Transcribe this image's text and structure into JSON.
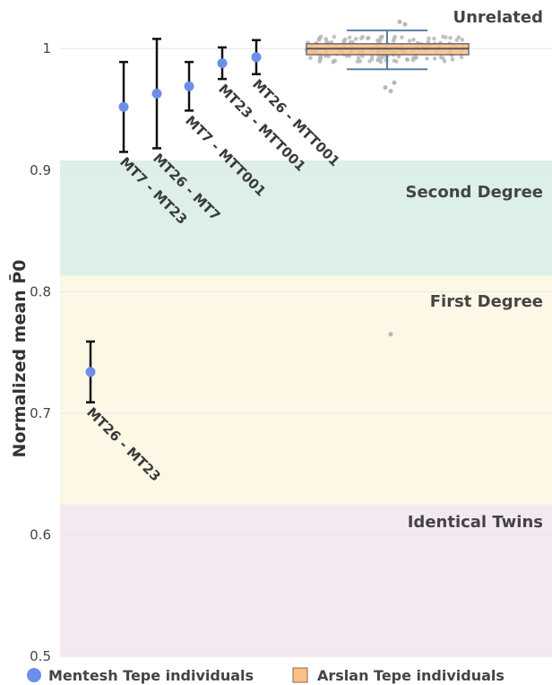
{
  "chart_data": {
    "type": "scatter",
    "title": "",
    "xlabel": "",
    "ylabel": "Normalized mean P̄0",
    "ylim": [
      0.5,
      1.04
    ],
    "yticks": [
      0.5,
      0.6,
      0.7,
      0.8,
      0.9,
      1
    ],
    "ytick_labels": [
      "0.5",
      "0.6",
      "0.7",
      "0.8",
      "0.9",
      "1"
    ],
    "grid": true,
    "legend_position": "bottom",
    "regions": [
      {
        "name": "Unrelated",
        "from": 0.908,
        "to": 1.04,
        "color": "#ffffff"
      },
      {
        "name": "Second Degree",
        "from": 0.813,
        "to": 0.908,
        "color": "#dcefe9"
      },
      {
        "name": "First Degree",
        "from": 0.625,
        "to": 0.813,
        "color": "#fcf8e5"
      },
      {
        "name": "Identical Twins",
        "from": 0.5,
        "to": 0.625,
        "color": "#f5e9f1"
      }
    ],
    "series": [
      {
        "name": "Mentesh Tepe individuals",
        "color": "#6b8fea",
        "points": [
          {
            "label": "MT26 - MT23",
            "y": 0.734,
            "low": 0.709,
            "high": 0.759
          },
          {
            "label": "MT7 - MT23",
            "y": 0.952,
            "low": 0.915,
            "high": 0.989
          },
          {
            "label": "MT26 - MT7",
            "y": 0.963,
            "low": 0.918,
            "high": 1.008
          },
          {
            "label": "MT7 - MTT001",
            "y": 0.969,
            "low": 0.949,
            "high": 0.989
          },
          {
            "label": "MT23 - MTT001",
            "y": 0.988,
            "low": 0.975,
            "high": 1.001
          },
          {
            "label": "MT26 - MTT001",
            "y": 0.993,
            "low": 0.979,
            "high": 1.007
          }
        ]
      },
      {
        "name": "Arslan Tepe individuals",
        "type": "box",
        "fill": "#fbbf88",
        "line": "#5a7fa8",
        "box": {
          "q1": 0.995,
          "median": 1.0,
          "q3": 1.004,
          "whisker_low": 0.983,
          "whisker_high": 1.015
        },
        "outliers": [
          0.765,
          0.965,
          0.968,
          0.972,
          1.02,
          1.022
        ]
      }
    ]
  }
}
